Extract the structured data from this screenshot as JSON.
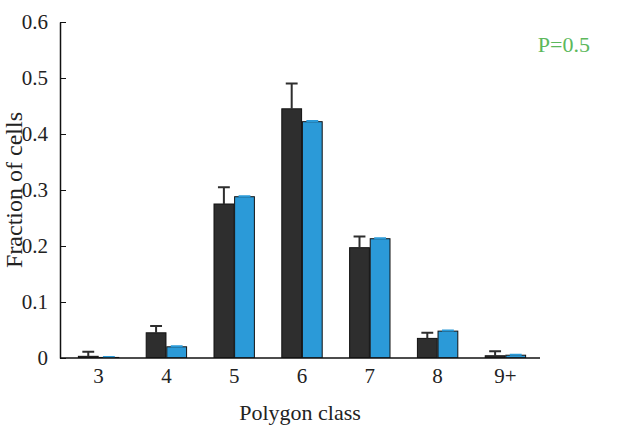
{
  "chart_data": {
    "type": "bar",
    "categories": [
      "3",
      "4",
      "5",
      "6",
      "7",
      "8",
      "9+"
    ],
    "series": [
      {
        "color": "#2e2e2e",
        "values": [
          0.003,
          0.045,
          0.275,
          0.445,
          0.197,
          0.035,
          0.004
        ],
        "errors": [
          0.008,
          0.012,
          0.03,
          0.045,
          0.02,
          0.01,
          0.008
        ]
      },
      {
        "color": "#2b9ad8",
        "values": [
          0.001,
          0.02,
          0.288,
          0.422,
          0.213,
          0.048,
          0.005
        ],
        "errors": [
          0.001,
          0.001,
          0.001,
          0.001,
          0.001,
          0.001,
          0.001
        ]
      }
    ],
    "x_label": "Polygon class",
    "y_label": "Fraction of cells",
    "ylim": [
      0,
      0.6
    ],
    "yticks": [
      0,
      0.1,
      0.2,
      0.3,
      0.4,
      0.5,
      0.6
    ],
    "grid": false,
    "annotations": [
      {
        "text": "P=0.5",
        "color": "#5cb85c"
      }
    ]
  }
}
